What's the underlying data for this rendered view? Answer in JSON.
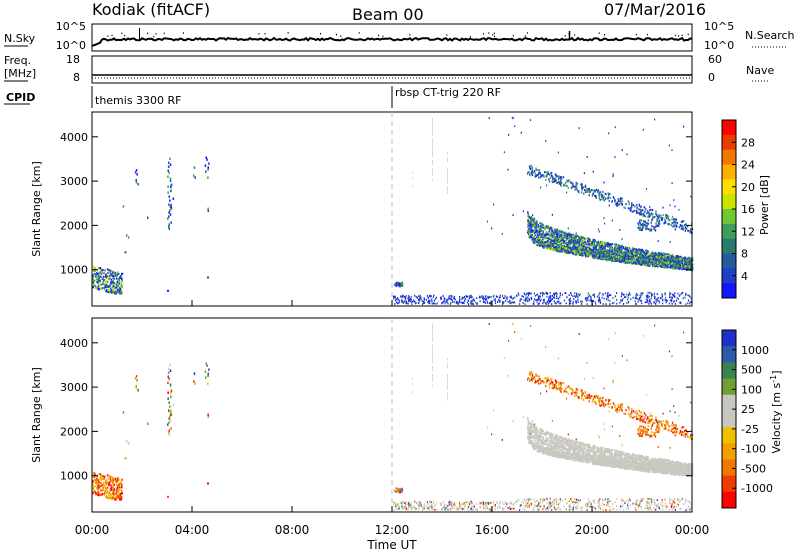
{
  "header": {
    "station": "Kodiak (fitACF)",
    "beam": "Beam 00",
    "date": "07/Mar/2016"
  },
  "top_panels": {
    "nsky_label": "N.Sky",
    "nsky_ticks": [
      "10^5",
      "10^0"
    ],
    "nsearch_label": "N.Search",
    "nsearch_ticks": [
      "10^5",
      "10^0"
    ],
    "freq_label_1": "Freq.",
    "freq_label_2": "[MHz]",
    "freq_ticks": [
      "18",
      "8"
    ],
    "nave_label": "Nave",
    "nave_ticks": [
      "60",
      "0"
    ],
    "cpid_label": "CPID",
    "cpid_segments": [
      {
        "label": "themis 3300 RF",
        "start_hour": 0
      },
      {
        "label": "rbsp CT-trig 220 RF",
        "start_hour": 12
      }
    ]
  },
  "chart_data": [
    {
      "type": "heatmap",
      "title": "",
      "xlabel": "",
      "ylabel": "Slant Range [km]",
      "xlim": [
        0,
        24
      ],
      "ylim": [
        180,
        4560
      ],
      "yticks": [
        1000,
        2000,
        3000,
        4000
      ],
      "colorbar": {
        "label": "Power [dB]",
        "ticks": [
          "28",
          "24",
          "20",
          "16",
          "12",
          "8",
          "4"
        ],
        "colors": [
          "#ff0000",
          "#e83c00",
          "#f07800",
          "#ffb000",
          "#ffdf00",
          "#c8e400",
          "#6ec832",
          "#3c9e5a",
          "#2a7a6e",
          "#245aa0",
          "#1e40c8",
          "#1414ff"
        ]
      },
      "features": [
        {
          "name": "near-range echoes",
          "t": [
            0.0,
            1.2
          ],
          "range": [
            550,
            1100
          ],
          "level": "high"
        },
        {
          "name": "scattered echoes",
          "t": [
            1.0,
            4.8
          ],
          "range": [
            400,
            3550
          ],
          "level": "mid"
        },
        {
          "name": "low band",
          "t": [
            12.0,
            24.0
          ],
          "range": [
            200,
            450
          ],
          "level": "low"
        },
        {
          "name": "upper arc",
          "t": [
            17.5,
            24.0
          ],
          "range": [
            1800,
            3300
          ],
          "level": "low"
        },
        {
          "name": "main band",
          "t": [
            17.5,
            24.0
          ],
          "range": [
            1000,
            2300
          ],
          "level": "high"
        }
      ]
    },
    {
      "type": "heatmap",
      "title": "",
      "xlabel": "Time UT",
      "ylabel": "Slant Range [km]",
      "xlim": [
        0,
        24
      ],
      "ylim": [
        180,
        4560
      ],
      "yticks": [
        1000,
        2000,
        3000,
        4000
      ],
      "xticks": [
        "00:00",
        "04:00",
        "08:00",
        "12:00",
        "16:00",
        "20:00",
        "00:00"
      ],
      "colorbar": {
        "label": "Velocity [m s^-1]",
        "ticks": [
          "1000",
          "500",
          "100",
          "25",
          "-25",
          "-100",
          "-500",
          "-1000"
        ],
        "colors": [
          "#1e30c8",
          "#2e5aa8",
          "#3c8250",
          "#6ea032",
          "#c8c8c0",
          "#c8c8c0",
          "#f0c000",
          "#f0a000",
          "#f07800",
          "#f03c00",
          "#ff0000"
        ]
      },
      "features": [
        {
          "name": "near-range echoes",
          "t": [
            0.0,
            1.2
          ],
          "range": [
            550,
            1100
          ],
          "velocity": "negative"
        },
        {
          "name": "scattered echoes",
          "t": [
            1.0,
            4.8
          ],
          "range": [
            400,
            3550
          ],
          "velocity": "mixed"
        },
        {
          "name": "main band",
          "t": [
            17.5,
            24.0
          ],
          "range": [
            1000,
            2300
          ],
          "velocity": "near zero"
        },
        {
          "name": "upper arc",
          "t": [
            17.5,
            24.0
          ],
          "range": [
            1800,
            3300
          ],
          "velocity": "negative"
        }
      ]
    }
  ]
}
